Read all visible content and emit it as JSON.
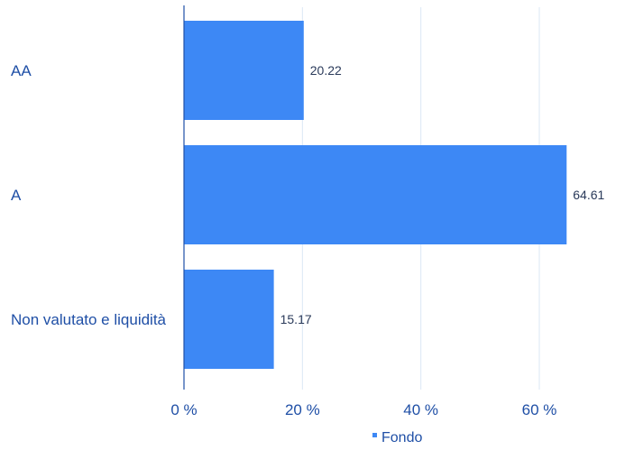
{
  "chart_data": {
    "type": "bar",
    "orientation": "horizontal",
    "categories": [
      "AA",
      "A",
      "Non valutato e liquidità"
    ],
    "series": [
      {
        "name": "Fondo",
        "values": [
          20.22,
          64.61,
          15.17
        ],
        "value_labels": [
          "20.22",
          "64.61",
          "15.17"
        ],
        "color": "#3d88f5"
      }
    ],
    "xlim": [
      0,
      70
    ],
    "x_ticks": [
      0,
      20,
      40,
      60
    ],
    "x_tick_labels": [
      "0 %",
      "20 %",
      "40 %",
      "60 %"
    ],
    "grid": true,
    "legend_position": "bottom-center",
    "colors": {
      "bar": "#3d88f5",
      "axis": "#1f4fa6",
      "grid": "#dbe7f5",
      "label": "#1f4fa6",
      "value_label": "#2a3a5a"
    }
  }
}
